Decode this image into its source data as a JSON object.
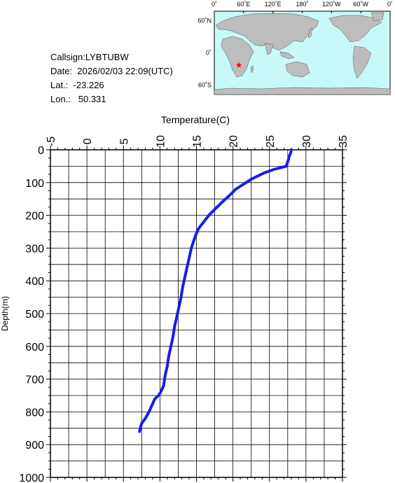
{
  "info": {
    "callsign": "Callsign:LYBTUBW",
    "date": "Date:  2026/02/03 22:09(UTC)",
    "lat": "Lat.:  -23.226",
    "lon": "Lon.:   50.331"
  },
  "map": {
    "lon_labels": [
      "0˚",
      "60˚E",
      "120˚E",
      "180˚",
      "120˚W",
      "60˚W",
      "0˚"
    ],
    "lat_labels": [
      "60˚N",
      "0˚",
      "60˚S"
    ],
    "station": {
      "lon": 50.331,
      "lat": -23.226
    },
    "colors": {
      "ocean": "#c8f8f8",
      "land": "#bdbdbd",
      "marker": "#ff0000"
    }
  },
  "chart_data": {
    "type": "line",
    "xlabel": "Temperature(C)",
    "ylabel": "Depth(m)",
    "xlim": [
      -5,
      35
    ],
    "ylim": [
      1000,
      0
    ],
    "x_ticks": [
      "-5",
      "0",
      "5",
      "10",
      "15",
      "20",
      "25",
      "30",
      "35"
    ],
    "y_ticks": [
      "0",
      "100",
      "200",
      "300",
      "400",
      "500",
      "600",
      "700",
      "800",
      "900",
      "1000"
    ],
    "grid": true,
    "color": "#1a1aee",
    "series": [
      {
        "x": [
          28.0,
          27.9,
          27.7,
          27.6,
          27.3,
          25.6,
          24.3,
          23.4,
          22.5,
          21.8,
          21.1,
          20.4,
          19.5,
          18.5,
          17.6,
          16.7,
          16.0,
          15.3,
          14.9,
          14.6,
          14.3,
          14.0,
          13.7,
          13.4,
          13.1,
          12.9,
          12.6,
          12.3,
          12.0,
          11.8,
          11.5,
          11.2,
          11.0,
          10.7,
          10.5,
          10.1,
          9.8,
          9.3,
          8.9,
          8.5,
          8.0,
          7.5,
          7.3,
          7.2
        ],
        "y": [
          0,
          10,
          20,
          30,
          50,
          60,
          70,
          80,
          90,
          100,
          110,
          120,
          140,
          160,
          180,
          200,
          220,
          240,
          260,
          280,
          300,
          330,
          360,
          390,
          420,
          450,
          480,
          510,
          540,
          570,
          600,
          630,
          660,
          690,
          720,
          740,
          750,
          760,
          780,
          800,
          820,
          835,
          850,
          860
        ]
      }
    ]
  }
}
